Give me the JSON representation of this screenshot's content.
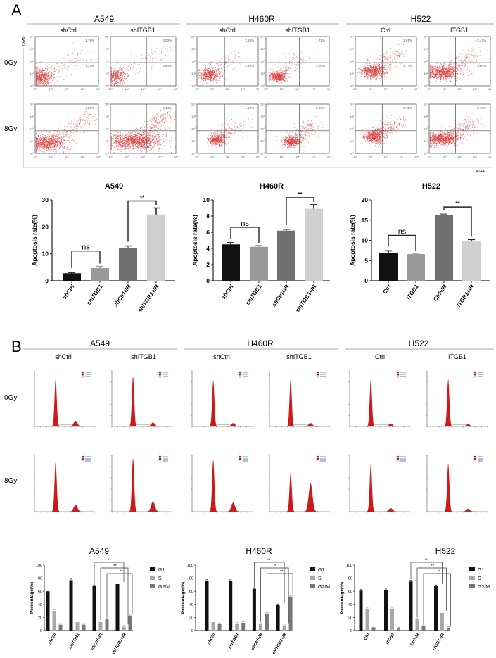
{
  "panel_a": {
    "label": "A",
    "groups": [
      {
        "name": "A549",
        "conditions": [
          "shCtrl",
          "shITGB1"
        ]
      },
      {
        "name": "H460R",
        "conditions": [
          "shCtrl",
          "shITGB1"
        ]
      },
      {
        "name": "H522",
        "conditions": [
          "Ctrl",
          "ITGB1"
        ]
      }
    ],
    "doses": [
      "0Gy",
      "8Gy"
    ],
    "y_axis": "7-AAD",
    "x_axis": "AV-PE",
    "flow_ticks": [
      "10⁰",
      "10¹",
      "10²",
      "10³",
      "10⁴"
    ],
    "quadrant_percent": [
      [
        [
          "1.78%",
          "1.17%"
        ],
        [
          "3.03%",
          "2.84%"
        ],
        [
          "2.24%",
          "2.33%"
        ],
        [
          "1.72%",
          "2.50%"
        ],
        [
          "2.51%",
          "4.77%"
        ],
        [
          "2.43%",
          "3.80%"
        ]
      ],
      [
        [
          "4.25%"
        ],
        [
          "6.14%"
        ],
        [
          "1.13%"
        ],
        [
          "2.83%"
        ],
        [
          "6.15%"
        ],
        [
          "5.13%"
        ]
      ]
    ],
    "dot_color": "#d42020"
  },
  "panel_b": {
    "label": "B",
    "groups": [
      {
        "name": "A549",
        "conditions": [
          "shCtrl",
          "shITGB1"
        ]
      },
      {
        "name": "H460R",
        "conditions": [
          "shCtrl",
          "shITGB1"
        ]
      },
      {
        "name": "H522",
        "conditions": [
          "Ctrl",
          "ITGB1"
        ]
      }
    ],
    "doses": [
      "0Gy",
      "8Gy"
    ],
    "histogram_fill": "#cc1a1a"
  },
  "chart_data": [
    {
      "type": "bar",
      "title": "A549",
      "xlabel": "",
      "ylabel": "Apoptosis rate(%)",
      "ylim": [
        0,
        30
      ],
      "yticks": [
        0,
        10,
        20,
        30
      ],
      "categories": [
        "shCtrl",
        "shITGB1",
        "shCtrl+IR",
        "shITGB1+IR"
      ],
      "values": [
        2.8,
        4.7,
        12.2,
        24.6
      ],
      "errors": [
        0.3,
        0.6,
        0.7,
        2.4
      ],
      "colors": [
        "#111111",
        "#9a9a9a",
        "#707070",
        "#d0d0d0"
      ],
      "significance": [
        {
          "from": 0,
          "to": 1,
          "label": "ns"
        },
        {
          "from": 2,
          "to": 3,
          "label": "**"
        }
      ]
    },
    {
      "type": "bar",
      "title": "H460R",
      "xlabel": "",
      "ylabel": "Apoptosis rate(%)",
      "ylim": [
        0,
        10
      ],
      "yticks": [
        0,
        2,
        4,
        6,
        8,
        10
      ],
      "categories": [
        "shCtrl",
        "shITGB1",
        "shCtrl+IR",
        "shITGB1+IR"
      ],
      "values": [
        4.5,
        4.2,
        6.2,
        8.9
      ],
      "errors": [
        0.2,
        0.15,
        0.15,
        0.5
      ],
      "colors": [
        "#111111",
        "#9a9a9a",
        "#707070",
        "#d0d0d0"
      ],
      "significance": [
        {
          "from": 0,
          "to": 1,
          "label": "ns"
        },
        {
          "from": 2,
          "to": 3,
          "label": "**"
        }
      ]
    },
    {
      "type": "bar",
      "title": "H522",
      "xlabel": "",
      "ylabel": "Apoptosis rate(%)",
      "ylim": [
        0,
        20
      ],
      "yticks": [
        0,
        5,
        10,
        15,
        20
      ],
      "categories": [
        "Ctrl",
        "ITGB1",
        "Ctrl+IR",
        "ITGB1+IR"
      ],
      "values": [
        6.9,
        6.6,
        16.2,
        9.8
      ],
      "errors": [
        0.5,
        0.2,
        0.3,
        0.4
      ],
      "colors": [
        "#111111",
        "#9a9a9a",
        "#707070",
        "#d0d0d0"
      ],
      "significance": [
        {
          "from": 0,
          "to": 1,
          "label": "ns"
        },
        {
          "from": 2,
          "to": 3,
          "label": "**"
        }
      ]
    },
    {
      "type": "bar",
      "title": "A549",
      "xlabel": "",
      "ylabel": "Percentage(%)",
      "ylim": [
        0,
        100
      ],
      "yticks": [
        0,
        20,
        40,
        60,
        80,
        100
      ],
      "categories": [
        "shCtrl",
        "shITGB1",
        "shCtrl+IR",
        "shITGB1+IR"
      ],
      "legend": "right",
      "series": [
        {
          "name": "G1",
          "values": [
            60,
            77,
            68,
            71
          ],
          "color": "#111111"
        },
        {
          "name": "S",
          "values": [
            30,
            13,
            13,
            6
          ],
          "color": "#a8a8a8"
        },
        {
          "name": "G2/M",
          "values": [
            9,
            9,
            17,
            22
          ],
          "color": "#777777"
        }
      ],
      "significance": [
        {
          "from": 2,
          "to": 3,
          "series": 0,
          "label": "*"
        },
        {
          "from": 2,
          "to": 3,
          "series": 1,
          "label": "**"
        },
        {
          "from": 2,
          "to": 3,
          "series": 2,
          "label": "**"
        }
      ]
    },
    {
      "type": "bar",
      "title": "H460R",
      "xlabel": "",
      "ylabel": "Percentage(%)",
      "ylim": [
        0,
        100
      ],
      "yticks": [
        0,
        20,
        40,
        60,
        80,
        100
      ],
      "categories": [
        "shCtrl",
        "shITGB1",
        "shCtrl+IR",
        "shITGB1+IR"
      ],
      "legend": "right",
      "series": [
        {
          "name": "G1",
          "values": [
            76,
            76,
            64,
            39
          ],
          "color": "#111111"
        },
        {
          "name": "S",
          "values": [
            13,
            11,
            10,
            8
          ],
          "color": "#a8a8a8"
        },
        {
          "name": "G2/M",
          "values": [
            10,
            12,
            26,
            52
          ],
          "color": "#777777"
        }
      ],
      "significance": [
        {
          "from": 2,
          "to": 3,
          "series": 0,
          "label": "**"
        },
        {
          "from": 2,
          "to": 3,
          "series": 1,
          "label": "*"
        },
        {
          "from": 2,
          "to": 3,
          "series": 2,
          "label": "**"
        }
      ]
    },
    {
      "type": "bar",
      "title": "H522",
      "xlabel": "",
      "ylabel": "Percentage(%)",
      "ylim": [
        0,
        100
      ],
      "yticks": [
        0,
        20,
        40,
        60,
        80,
        100
      ],
      "categories": [
        "Ctrl",
        "ITGB1",
        "Ctrl+IR",
        "ITGB1+IR"
      ],
      "legend": "right",
      "series": [
        {
          "name": "G1",
          "values": [
            61,
            62,
            75,
            68
          ],
          "color": "#111111"
        },
        {
          "name": "S",
          "values": [
            33,
            33,
            17,
            27
          ],
          "color": "#a8a8a8"
        },
        {
          "name": "G2/M",
          "values": [
            5,
            3,
            7,
            4
          ],
          "color": "#777777"
        }
      ],
      "significance": [
        {
          "from": 2,
          "to": 3,
          "series": 0,
          "label": "**"
        },
        {
          "from": 2,
          "to": 3,
          "series": 1,
          "label": "**"
        },
        {
          "from": 2,
          "to": 3,
          "series": 2,
          "label": "**"
        }
      ]
    }
  ]
}
